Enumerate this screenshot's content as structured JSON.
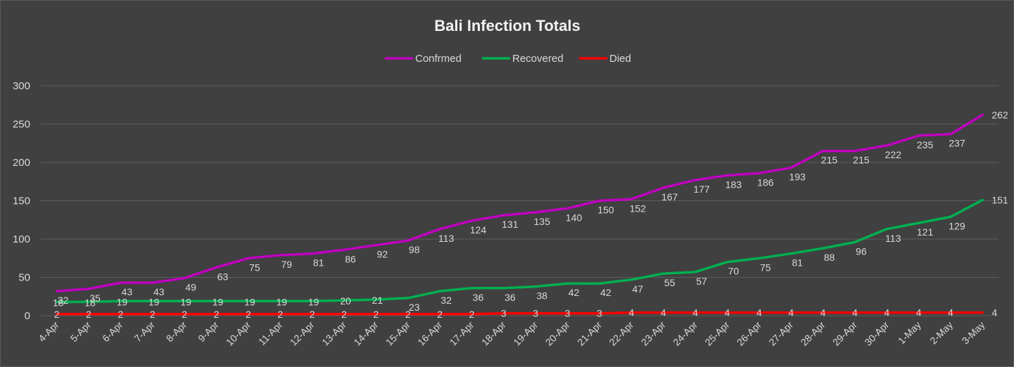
{
  "chart_data": {
    "type": "line",
    "title": "Bali Infection Totals",
    "xlabel": "",
    "ylabel": "",
    "ylim": [
      0,
      300
    ],
    "yticks": [
      0,
      50,
      100,
      150,
      200,
      250,
      300
    ],
    "grid": true,
    "legend_position": "top",
    "categories": [
      "4-Apr",
      "5-Apr",
      "6-Apr",
      "7-Apr",
      "8-Apr",
      "9-Apr",
      "10-Apr",
      "11-Apr",
      "12-Apr",
      "13-Apr",
      "14-Apr",
      "15-Apr",
      "16-Apr",
      "17-Apr",
      "18-Apr",
      "19-Apr",
      "20-Apr",
      "21-Apr",
      "22-Apr",
      "23-Apr",
      "24-Apr",
      "25-Apr",
      "26-Apr",
      "27-Apr",
      "28-Apr",
      "29-Apr",
      "30-Apr",
      "1-May",
      "2-May",
      "3-May"
    ],
    "series": [
      {
        "name": "Confrmed",
        "color": "#c000c0",
        "values": [
          32,
          35,
          43,
          43,
          49,
          63,
          75,
          79,
          81,
          86,
          92,
          98,
          113,
          124,
          131,
          135,
          140,
          150,
          152,
          167,
          177,
          183,
          186,
          193,
          215,
          215,
          222,
          235,
          237,
          262
        ]
      },
      {
        "name": "Recovered",
        "color": "#00b050",
        "values": [
          18,
          18,
          19,
          19,
          19,
          19,
          19,
          19,
          19,
          20,
          21,
          23,
          32,
          36,
          36,
          38,
          42,
          42,
          47,
          55,
          57,
          70,
          75,
          81,
          88,
          96,
          113,
          121,
          129,
          151
        ]
      },
      {
        "name": "Died",
        "color": "#ff0000",
        "values": [
          2,
          2,
          2,
          2,
          2,
          2,
          2,
          2,
          2,
          2,
          2,
          2,
          2,
          2,
          3,
          3,
          3,
          3,
          4,
          4,
          4,
          4,
          4,
          4,
          4,
          4,
          4,
          4,
          4,
          4
        ]
      }
    ]
  }
}
